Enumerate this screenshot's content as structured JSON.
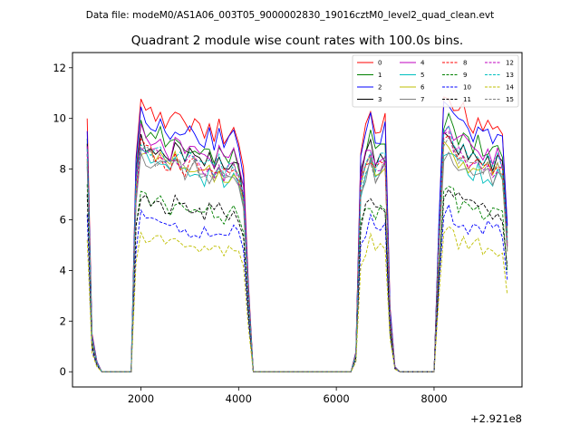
{
  "chart_data": {
    "type": "line",
    "suptitle": "Data file: modeM0/AS1A06_003T05_9000002830_19016cztM0_level2_quad_clean.evt",
    "title": "Quadrant 2 module wise count rates with 100.0s bins.",
    "xlabel": "",
    "ylabel": "",
    "x_offset_label": "+2.921e8",
    "xlim": [
      600,
      9800
    ],
    "ylim": [
      -0.6,
      12.6
    ],
    "x_ticks": [
      2000,
      4000,
      6000,
      8000
    ],
    "x_tick_labels": [
      "2000",
      "4000",
      "6000",
      "8000"
    ],
    "y_ticks": [
      0,
      2,
      4,
      6,
      8,
      10,
      12
    ],
    "y_tick_labels": [
      "0",
      "2",
      "4",
      "6",
      "8",
      "10",
      "12"
    ],
    "legend_position": "upper-right",
    "series": [
      {
        "name": "0",
        "color": "#ff0000",
        "dash": "solid",
        "rate": 9.9,
        "start": 10.0
      },
      {
        "name": "1",
        "color": "#008000",
        "dash": "solid",
        "rate": 9.0,
        "start": 9.2
      },
      {
        "name": "2",
        "color": "#0000ff",
        "dash": "solid",
        "rate": 9.6,
        "start": 9.5
      },
      {
        "name": "3",
        "color": "#000000",
        "dash": "solid",
        "rate": 8.6,
        "start": 9.0
      },
      {
        "name": "4",
        "color": "#bf00bf",
        "dash": "solid",
        "rate": 8.8,
        "start": 8.9
      },
      {
        "name": "5",
        "color": "#00bfbf",
        "dash": "solid",
        "rate": 8.0,
        "start": 8.2
      },
      {
        "name": "6",
        "color": "#bfbf00",
        "dash": "solid",
        "rate": 8.2,
        "start": 8.4
      },
      {
        "name": "7",
        "color": "#808080",
        "dash": "solid",
        "rate": 8.0,
        "start": 8.1
      },
      {
        "name": "8",
        "color": "#ff0000",
        "dash": "dashed",
        "rate": 8.3,
        "start": 8.6
      },
      {
        "name": "9",
        "color": "#008000",
        "dash": "dashed",
        "rate": 6.5,
        "start": 7.4
      },
      {
        "name": "10",
        "color": "#0000ff",
        "dash": "dashed",
        "rate": 5.7,
        "start": 6.2
      },
      {
        "name": "11",
        "color": "#000000",
        "dash": "dashed",
        "rate": 6.6,
        "start": 7.0
      },
      {
        "name": "12",
        "color": "#bf00bf",
        "dash": "dashed",
        "rate": 8.4,
        "start": 8.6
      },
      {
        "name": "13",
        "color": "#00bfbf",
        "dash": "dashed",
        "rate": 8.6,
        "start": 8.8
      },
      {
        "name": "14",
        "color": "#bfbf00",
        "dash": "dashed",
        "rate": 5.0,
        "start": 5.2
      },
      {
        "name": "15",
        "color": "#808080",
        "dash": "dashed",
        "rate": 8.2,
        "start": 8.3
      }
    ],
    "x": [
      900,
      1000,
      1100,
      1200,
      1300,
      1400,
      1500,
      1600,
      1700,
      1800,
      1900,
      2000,
      2100,
      2200,
      2300,
      2400,
      2500,
      2600,
      2700,
      2800,
      2900,
      3000,
      3100,
      3200,
      3300,
      3400,
      3500,
      3600,
      3700,
      3800,
      3900,
      4000,
      4100,
      4200,
      4300,
      4400,
      4500,
      4600,
      4700,
      4800,
      4900,
      5000,
      5100,
      5200,
      5300,
      5400,
      5500,
      5600,
      5700,
      5800,
      5900,
      6000,
      6100,
      6200,
      6300,
      6400,
      6500,
      6600,
      6700,
      6800,
      6900,
      7000,
      7100,
      7200,
      7300,
      7400,
      7500,
      7600,
      7700,
      7800,
      7900,
      8000,
      8100,
      8200,
      8300,
      8400,
      8500,
      8600,
      8700,
      8800,
      8900,
      9000,
      9100,
      9200,
      9300,
      9400,
      9500
    ],
    "profile": [
      1.0,
      0.15,
      0.04,
      0,
      0,
      0,
      0,
      0,
      0,
      0,
      0.85,
      1.08,
      1.05,
      1.03,
      1.01,
      1.04,
      0.99,
      0.98,
      1.02,
      1.0,
      0.97,
      0.99,
      1.0,
      0.96,
      0.95,
      0.97,
      0.94,
      0.98,
      0.93,
      0.95,
      0.97,
      0.92,
      0.82,
      0.35,
      0,
      0,
      0,
      0,
      0,
      0,
      0,
      0,
      0,
      0,
      0,
      0,
      0,
      0,
      0,
      0,
      0,
      0,
      0,
      0,
      0,
      0.08,
      0.88,
      0.98,
      1.03,
      0.95,
      0.97,
      1.0,
      0.25,
      0.02,
      0,
      0,
      0,
      0,
      0,
      0,
      0,
      0,
      0.6,
      1.08,
      1.1,
      1.06,
      1.02,
      1.04,
      1.0,
      0.98,
      1.01,
      0.97,
      0.99,
      0.95,
      0.97,
      0.94,
      0.6
    ]
  }
}
